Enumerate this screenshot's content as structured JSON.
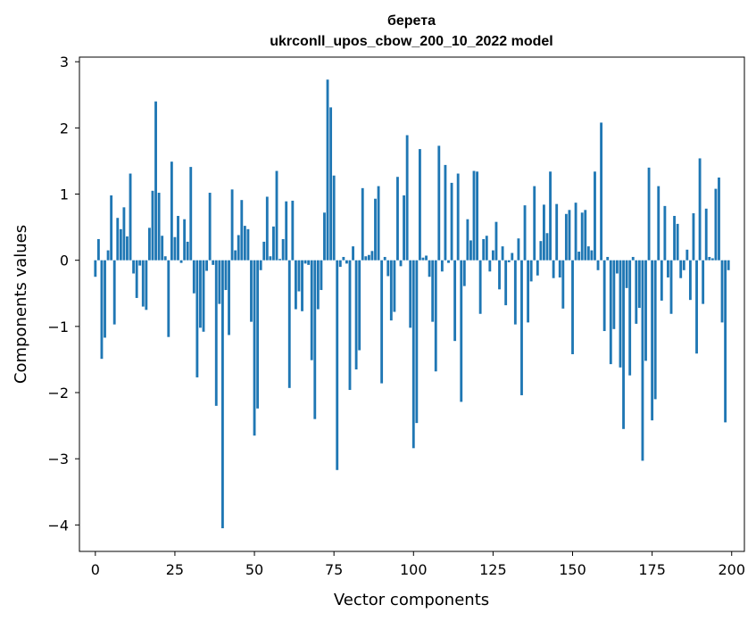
{
  "chart_data": {
    "type": "bar",
    "title": [
      "берета",
      "ukrconll_upos_cbow_200_10_2022 model"
    ],
    "xlabel": "Vector components",
    "ylabel": "Components values",
    "xlim": [
      -5,
      204
    ],
    "ylim": [
      -4.4,
      3.07
    ],
    "xticks": [
      0,
      25,
      50,
      75,
      100,
      125,
      150,
      175,
      200
    ],
    "xtick_labels": [
      "0",
      "25",
      "50",
      "75",
      "100",
      "125",
      "150",
      "175",
      "200"
    ],
    "yticks": [
      -4,
      -3,
      -2,
      -1,
      0,
      1,
      2,
      3
    ],
    "ytick_labels": [
      "−4",
      "−3",
      "−2",
      "−1",
      "0",
      "1",
      "2",
      "3"
    ],
    "bar_color": "#1f77b4",
    "values": [
      -0.25,
      0.32,
      -1.49,
      -1.17,
      0.15,
      0.98,
      -0.97,
      0.64,
      0.47,
      0.8,
      0.36,
      1.31,
      -0.2,
      -0.57,
      -0.08,
      -0.7,
      -0.75,
      0.49,
      1.05,
      2.4,
      1.02,
      0.37,
      0.06,
      -1.16,
      1.49,
      0.35,
      0.67,
      -0.04,
      0.62,
      0.28,
      1.41,
      -0.5,
      -1.77,
      -1.02,
      -1.08,
      -0.16,
      1.02,
      -0.07,
      -2.2,
      -0.66,
      -4.05,
      -0.45,
      -1.13,
      1.07,
      0.15,
      0.38,
      0.91,
      0.52,
      0.47,
      -0.93,
      -2.65,
      -2.24,
      -0.15,
      0.28,
      0.96,
      0.06,
      0.51,
      1.35,
      0.02,
      0.32,
      0.89,
      -1.93,
      0.9,
      -0.74,
      -0.47,
      -0.77,
      -0.05,
      -0.07,
      -1.51,
      -2.4,
      -0.74,
      -0.45,
      0.72,
      2.73,
      2.31,
      1.28,
      -3.17,
      -0.1,
      0.05,
      -0.05,
      -1.96,
      0.21,
      -1.65,
      -1.36,
      1.09,
      0.06,
      0.08,
      0.14,
      0.93,
      1.12,
      -1.86,
      0.05,
      -0.24,
      -0.91,
      -0.78,
      1.26,
      -0.09,
      0.98,
      1.89,
      -1.02,
      -2.84,
      -2.46,
      1.68,
      0.04,
      0.07,
      -0.25,
      -0.93,
      -1.68,
      1.73,
      -0.17,
      1.44,
      -0.04,
      1.17,
      -1.22,
      1.31,
      -2.14,
      -0.39,
      0.62,
      0.3,
      1.35,
      1.34,
      -0.81,
      0.32,
      0.37,
      -0.17,
      0.15,
      0.58,
      -0.44,
      0.21,
      -0.68,
      -0.03,
      0.11,
      -0.97,
      0.33,
      -2.04,
      0.83,
      -0.94,
      -0.32,
      1.12,
      -0.23,
      0.29,
      0.84,
      0.41,
      1.34,
      -0.27,
      0.85,
      -0.26,
      -0.73,
      0.7,
      0.76,
      -1.42,
      0.87,
      0.13,
      0.72,
      0.76,
      0.21,
      0.15,
      1.34,
      -0.15,
      2.08,
      -1.07,
      0.05,
      -1.57,
      -1.04,
      -0.2,
      -1.62,
      -2.55,
      -0.42,
      -1.74,
      0.05,
      -0.96,
      -0.72,
      -3.03,
      -1.52,
      1.4,
      -2.42,
      -2.1,
      1.12,
      -0.61,
      0.82,
      -0.26,
      -0.81,
      0.67,
      0.55,
      -0.27,
      -0.15,
      0.16,
      -0.6,
      0.71,
      -1.41,
      1.54,
      -0.66,
      0.78,
      0.05,
      0.03,
      1.08,
      1.25,
      -0.94,
      -2.45,
      -0.15
    ]
  }
}
